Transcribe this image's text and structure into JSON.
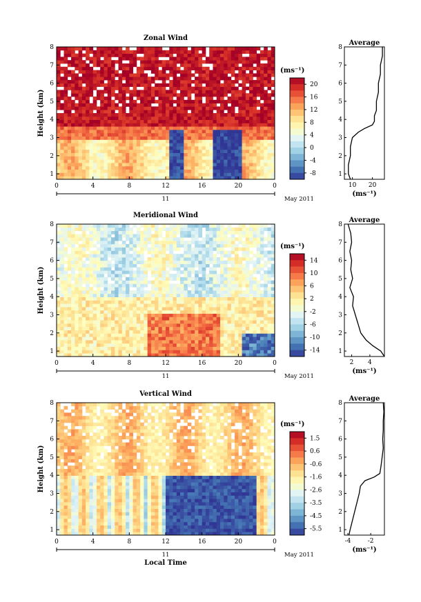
{
  "chart_data": [
    {
      "type": "heatmap",
      "title": "Zonal Wind",
      "ylabel": "Height (km)",
      "y_ticks": [
        "1",
        "2",
        "3",
        "4",
        "5",
        "6",
        "7",
        "8"
      ],
      "x_ticks": [
        "0",
        "4",
        "8",
        "12",
        "16",
        "20",
        "0"
      ],
      "date_label": "11",
      "month_label": "May 2011",
      "unit": "(ms⁻¹)",
      "colorbar_ticks": [
        "20",
        "16",
        "12",
        "8",
        "4",
        "0",
        "-4",
        "-8"
      ],
      "colorbar_range": [
        -10,
        22
      ],
      "average": {
        "title": "Average",
        "x_ticks": [
          "10",
          "20"
        ],
        "xlim": [
          6,
          26
        ],
        "xlabel": "(ms⁻¹)",
        "height": [
          0.7,
          1.0,
          1.5,
          2.0,
          2.5,
          3.0,
          3.3,
          3.5,
          3.7,
          3.9,
          4.2,
          4.5,
          5.0,
          5.5,
          6.0,
          6.5,
          7.0,
          7.5,
          8.0
        ],
        "values": [
          9,
          8,
          8,
          9,
          9,
          10,
          13,
          16,
          20,
          21,
          21,
          22,
          22,
          23,
          23,
          24,
          24,
          25,
          25
        ]
      }
    },
    {
      "type": "heatmap",
      "title": "Meridional Wind",
      "ylabel": "Height (km)",
      "y_ticks": [
        "1",
        "2",
        "3",
        "4",
        "5",
        "6",
        "7",
        "8"
      ],
      "x_ticks": [
        "0",
        "4",
        "8",
        "12",
        "16",
        "20",
        "0"
      ],
      "date_label": "11",
      "month_label": "May 2011",
      "unit": "(ms⁻¹)",
      "colorbar_ticks": [
        "14",
        "10",
        "6",
        "2",
        "-2",
        "-6",
        "-10",
        "-14"
      ],
      "colorbar_range": [
        -16,
        16
      ],
      "average": {
        "title": "Average",
        "x_ticks": [
          "2",
          "4"
        ],
        "xlim": [
          1.2,
          5.6
        ],
        "xlabel": "(ms⁻¹)",
        "height": [
          0.7,
          1.0,
          1.3,
          1.6,
          2.0,
          2.5,
          3.0,
          3.5,
          4.0,
          4.5,
          5.0,
          5.5,
          6.0,
          6.5,
          7.0,
          7.5,
          8.0
        ],
        "values": [
          5.6,
          5.2,
          4.3,
          3.6,
          3.0,
          2.7,
          2.4,
          2.1,
          2.2,
          1.8,
          2.1,
          1.9,
          2.0,
          1.8,
          2.0,
          1.9,
          1.6
        ]
      }
    },
    {
      "type": "heatmap",
      "title": "Vertical Wind",
      "ylabel": "Height (km)",
      "xlabel": "Local Time",
      "y_ticks": [
        "1",
        "2",
        "3",
        "4",
        "5",
        "6",
        "7",
        "8"
      ],
      "x_ticks": [
        "0",
        "4",
        "8",
        "12",
        "16",
        "20",
        "0"
      ],
      "date_label": "11",
      "month_label": "May 2011",
      "unit": "(ms⁻¹)",
      "colorbar_ticks": [
        "1.5",
        "0.6",
        "-0.6",
        "-1.6",
        "-2.6",
        "-3.5",
        "-4.5",
        "-5.5"
      ],
      "colorbar_range": [
        -6,
        2
      ],
      "average": {
        "title": "Average",
        "x_ticks": [
          "-4",
          "-2"
        ],
        "xlim": [
          -4.3,
          -0.8
        ],
        "xlabel": "(ms⁻¹)",
        "height": [
          0.7,
          1.0,
          1.5,
          2.0,
          2.5,
          3.0,
          3.4,
          3.7,
          3.9,
          4.1,
          4.5,
          5.0,
          5.5,
          6.0,
          6.5,
          7.0,
          7.5,
          8.0
        ],
        "values": [
          -3.9,
          -3.8,
          -3.6,
          -3.4,
          -3.2,
          -3.0,
          -2.9,
          -2.5,
          -1.7,
          -1.2,
          -1.1,
          -1.0,
          -0.9,
          -0.95,
          -0.9,
          -0.9,
          -0.85,
          -0.9
        ]
      }
    }
  ]
}
